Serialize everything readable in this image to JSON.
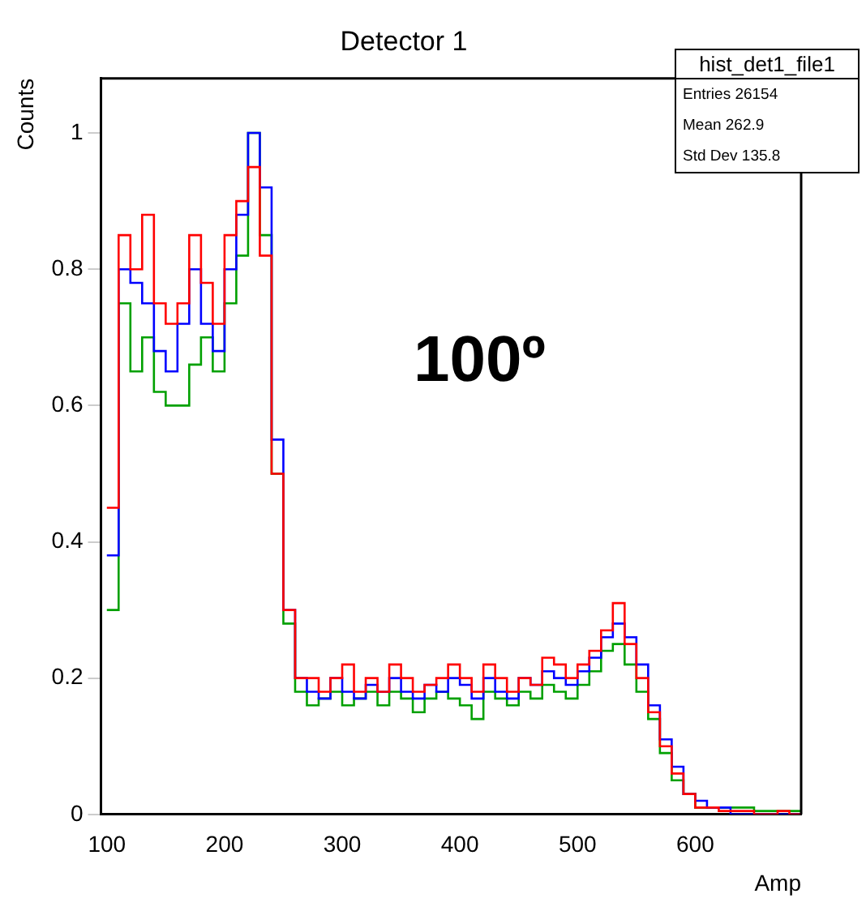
{
  "chart_data": {
    "type": "histogram",
    "title": "Detector 1",
    "xlabel": "Amp",
    "ylabel": "Counts",
    "annotations": [
      "100º",
      "hist_det1_file1",
      "Entries 26154",
      "Mean 262.9",
      "Std Dev 135.8"
    ],
    "bins": [
      100,
      110,
      120,
      130,
      140,
      150,
      160,
      170,
      180,
      190,
      200,
      210,
      220,
      230,
      240,
      250,
      260,
      270,
      280,
      290,
      300,
      310,
      320,
      330,
      340,
      350,
      360,
      370,
      380,
      390,
      400,
      410,
      420,
      430,
      440,
      450,
      460,
      470,
      480,
      490,
      500,
      510,
      520,
      530,
      540,
      550,
      560,
      570,
      580,
      590,
      600,
      610,
      620,
      630,
      640,
      650,
      660,
      670,
      680,
      690
    ],
    "series": [
      {
        "color": "#ff0000",
        "values": [
          0.45,
          0.85,
          0.8,
          0.88,
          0.75,
          0.72,
          0.75,
          0.85,
          0.78,
          0.72,
          0.85,
          0.9,
          0.95,
          0.82,
          0.5,
          0.3,
          0.2,
          0.2,
          0.18,
          0.2,
          0.22,
          0.18,
          0.2,
          0.18,
          0.22,
          0.2,
          0.18,
          0.19,
          0.2,
          0.22,
          0.2,
          0.18,
          0.22,
          0.2,
          0.18,
          0.2,
          0.19,
          0.23,
          0.22,
          0.2,
          0.22,
          0.24,
          0.27,
          0.31,
          0.25,
          0.2,
          0.15,
          0.1,
          0.06,
          0.03,
          0.01,
          0.01,
          0.005,
          0.005,
          0.005,
          0,
          0,
          0.005,
          0
        ]
      },
      {
        "color": "#0000ff",
        "values": [
          0.38,
          0.8,
          0.78,
          0.75,
          0.68,
          0.65,
          0.72,
          0.8,
          0.72,
          0.68,
          0.8,
          0.88,
          1.0,
          0.92,
          0.55,
          0.3,
          0.2,
          0.18,
          0.17,
          0.2,
          0.18,
          0.17,
          0.19,
          0.18,
          0.2,
          0.18,
          0.17,
          0.19,
          0.18,
          0.2,
          0.19,
          0.17,
          0.2,
          0.18,
          0.17,
          0.2,
          0.19,
          0.21,
          0.2,
          0.19,
          0.21,
          0.23,
          0.26,
          0.28,
          0.26,
          0.22,
          0.16,
          0.11,
          0.07,
          0.03,
          0.02,
          0.01,
          0.01,
          0,
          0,
          0,
          0,
          0,
          0
        ]
      },
      {
        "color": "#00a000",
        "values": [
          0.3,
          0.75,
          0.65,
          0.7,
          0.62,
          0.6,
          0.6,
          0.66,
          0.7,
          0.65,
          0.75,
          0.82,
          1.0,
          0.85,
          0.5,
          0.28,
          0.18,
          0.16,
          0.17,
          0.18,
          0.16,
          0.17,
          0.18,
          0.16,
          0.18,
          0.17,
          0.15,
          0.17,
          0.18,
          0.17,
          0.16,
          0.14,
          0.18,
          0.17,
          0.16,
          0.18,
          0.17,
          0.19,
          0.18,
          0.17,
          0.19,
          0.21,
          0.24,
          0.25,
          0.22,
          0.18,
          0.14,
          0.09,
          0.05,
          0.03,
          0.01,
          0.01,
          0.01,
          0.01,
          0.01,
          0.005,
          0.005,
          0.005,
          0.005
        ]
      }
    ],
    "xlim": [
      95,
      690
    ],
    "xticks": [
      100,
      200,
      300,
      400,
      500,
      600
    ],
    "ylim": [
      0,
      1.08
    ],
    "yticks": [
      0,
      {
        "value": 0.2,
        "label": "0.2"
      },
      {
        "value": 0.4,
        "label": "0.4"
      },
      {
        "value": 0.6,
        "label": "0.6"
      },
      {
        "value": 0.8,
        "label": "0.8"
      },
      1
    ],
    "grid": false,
    "legend": false
  }
}
